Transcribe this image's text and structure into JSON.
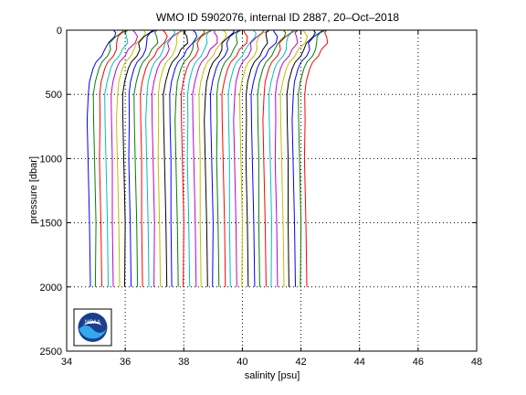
{
  "chart_data": {
    "type": "line",
    "title": "WMO ID 5902076, internal ID 2887, 20–Oct–2018",
    "xlabel": "salinity [psu]",
    "ylabel": "pressure [dbar]",
    "xlim": [
      34,
      48
    ],
    "ylim": [
      0,
      2500
    ],
    "y_reversed": true,
    "grid": true,
    "x_ticks": [
      "34",
      "36",
      "38",
      "40",
      "42",
      "44",
      "46",
      "48"
    ],
    "y_ticks": [
      "0",
      "500",
      "1000",
      "1500",
      "2000",
      "2500"
    ],
    "logo": "NOAA",
    "profile_colors": [
      "#0000ff",
      "#008000",
      "#ff0000",
      "#00bfbf",
      "#bf00bf",
      "#bfbf00",
      "#000000"
    ],
    "profile_pressures": [
      0,
      20,
      50,
      100,
      150,
      200,
      250,
      300,
      400,
      500,
      700,
      1000,
      1500,
      2000
    ],
    "profile_offset_psu": 0.2,
    "profile_count": 38,
    "base_profile": [
      35.6,
      35.55,
      35.5,
      35.4,
      35.3,
      35.2,
      35.0,
      34.9,
      34.78,
      34.72,
      34.72,
      34.74,
      34.78,
      34.8
    ]
  }
}
